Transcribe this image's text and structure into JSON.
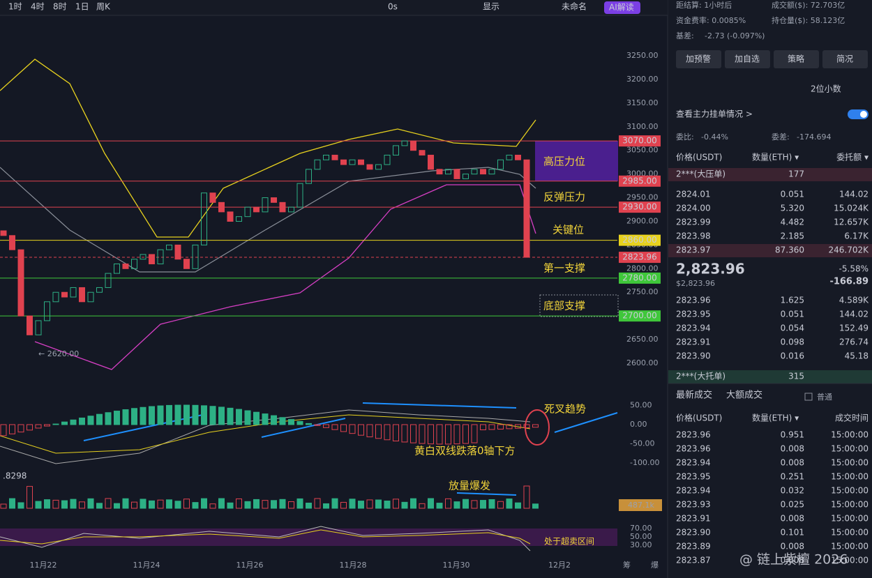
{
  "toolbar": {
    "intervals": [
      "1时",
      "4时",
      "8时",
      "1日",
      "周K"
    ],
    "timer": "0s",
    "display": "显示",
    "layout": "未命名",
    "ai": "AI解读"
  },
  "chart": {
    "ylim": [
      2600,
      3250
    ],
    "price_ticks": [
      {
        "value": 3250,
        "label": "3250.00"
      },
      {
        "value": 3200,
        "label": "3200.00"
      },
      {
        "value": 3150,
        "label": "3150.00"
      },
      {
        "value": 3100,
        "label": "3100.00"
      },
      {
        "value": 3050,
        "label": "3050.00"
      },
      {
        "value": 3000,
        "label": "3000.00"
      },
      {
        "value": 2950,
        "label": "2950.00"
      },
      {
        "value": 2900,
        "label": "2900.00"
      },
      {
        "value": 2850,
        "label": "2850.00"
      },
      {
        "value": 2800,
        "label": "2800.00"
      },
      {
        "value": 2750,
        "label": "2750.00"
      },
      {
        "value": 2700,
        "label": "2700.00"
      },
      {
        "value": 2650,
        "label": "2650.00"
      },
      {
        "value": 2600,
        "label": "2600.00"
      }
    ],
    "levels": [
      {
        "value": 3070,
        "label": "3070.00",
        "color": "#e0424f"
      },
      {
        "value": 2985,
        "label": "2985.00",
        "color": "#e0424f"
      },
      {
        "value": 2930,
        "label": "2930.00",
        "color": "#e0424f"
      },
      {
        "value": 2860,
        "label": "2860.00",
        "color": "#e8d21e"
      },
      {
        "value": 2823.96,
        "label": "2823.96",
        "color": "#e0424f"
      },
      {
        "value": 2780,
        "label": "2780.00",
        "color": "#3fc73a"
      },
      {
        "value": 2700,
        "label": "2700.00",
        "color": "#3fc73a"
      }
    ],
    "low_label": "← 2620.00",
    "annotations": [
      "高压力位",
      "反弹压力",
      "关键位",
      "第一支撑",
      "底部支撑",
      "死叉趋势",
      "黄白双线跌落0轴下方",
      "放量爆发",
      "处于超卖区间"
    ],
    "candles": [
      [
        2880,
        2870
      ],
      [
        2870,
        2840
      ],
      [
        2840,
        2700
      ],
      [
        2700,
        2660
      ],
      [
        2660,
        2690
      ],
      [
        2690,
        2730
      ],
      [
        2730,
        2750
      ],
      [
        2750,
        2740
      ],
      [
        2740,
        2760
      ],
      [
        2760,
        2730
      ],
      [
        2730,
        2750
      ],
      [
        2750,
        2760
      ],
      [
        2760,
        2790
      ],
      [
        2790,
        2810
      ],
      [
        2810,
        2800
      ],
      [
        2800,
        2820
      ],
      [
        2820,
        2830
      ],
      [
        2830,
        2810
      ],
      [
        2810,
        2840
      ],
      [
        2840,
        2850
      ],
      [
        2850,
        2820
      ],
      [
        2820,
        2800
      ],
      [
        2800,
        2850
      ],
      [
        2850,
        2960
      ],
      [
        2960,
        2940
      ],
      [
        2940,
        2920
      ],
      [
        2920,
        2900
      ],
      [
        2900,
        2910
      ],
      [
        2910,
        2930
      ],
      [
        2930,
        2920
      ],
      [
        2920,
        2950
      ],
      [
        2950,
        2940
      ],
      [
        2940,
        2920
      ],
      [
        2920,
        2930
      ],
      [
        2930,
        2980
      ],
      [
        2980,
        3010
      ],
      [
        3010,
        3030
      ],
      [
        3030,
        3040
      ],
      [
        3040,
        3030
      ],
      [
        3030,
        3020
      ],
      [
        3020,
        3030
      ],
      [
        3030,
        3020
      ],
      [
        3020,
        3010
      ],
      [
        3010,
        3020
      ],
      [
        3020,
        3040
      ],
      [
        3040,
        3060
      ],
      [
        3060,
        3070
      ],
      [
        3070,
        3050
      ],
      [
        3050,
        3040
      ],
      [
        3040,
        3010
      ],
      [
        3010,
        3000
      ],
      [
        3000,
        3010
      ],
      [
        3010,
        2990
      ],
      [
        2990,
        3000
      ],
      [
        3000,
        3010
      ],
      [
        3010,
        3000
      ],
      [
        3000,
        3010
      ],
      [
        3010,
        3030
      ],
      [
        3030,
        3040
      ],
      [
        3040,
        3030
      ],
      [
        3030,
        2824
      ]
    ],
    "dates": [
      "11月22",
      "11月24",
      "11月26",
      "11月28",
      "11月30",
      "12月2"
    ],
    "macd_ticks": [
      {
        "value": 50,
        "label": "50.00"
      },
      {
        "value": 0,
        "label": "0.00"
      },
      {
        "value": -50,
        "label": "-50.00"
      },
      {
        "value": -100,
        "label": "-100.00"
      }
    ],
    "indicator_value": ".8298",
    "volume_label": "487.1k",
    "rsi_ticks": [
      {
        "value": 70,
        "label": "70.00"
      },
      {
        "value": 50,
        "label": "50.00"
      },
      {
        "value": 30,
        "label": "30.00"
      }
    ],
    "corner": [
      "筹",
      "爆"
    ]
  },
  "panel": {
    "settle": "距结算: 1小时后",
    "turnover": "成交额($): 72.703亿",
    "funding": "资金费率: 0.0085%",
    "open_interest": "持仓量($): 58.123亿",
    "basis_label": "基差:",
    "basis": "-2.73 (-0.097%)",
    "buttons": [
      "加预警",
      "加自选",
      "策略",
      "简况"
    ],
    "decimals": "2位小数",
    "main_orders": "查看主力挂单情况 >",
    "ratio_label": "委比:",
    "ratio": "-0.44%",
    "diff_label": "委差:",
    "diff": "-174.694",
    "book_header": [
      "价格(USDT)",
      "数量(ETH) ▾",
      "委托额 ▾"
    ],
    "big_ask": {
      "name": "2***(大压单)",
      "qty": "177"
    },
    "asks": [
      [
        "2824.01",
        "0.051",
        "144.02"
      ],
      [
        "2824.00",
        "5.320",
        "15.024K"
      ],
      [
        "2823.99",
        "4.482",
        "12.657K"
      ],
      [
        "2823.98",
        "2.185",
        "6.17K"
      ],
      [
        "2823.97",
        "87.360",
        "246.702K"
      ]
    ],
    "last": "2,823.96",
    "last_usd": "$2,823.96",
    "change_pct": "-5.58%",
    "change": "-166.89",
    "bids": [
      [
        "2823.96",
        "1.625",
        "4.589K"
      ],
      [
        "2823.95",
        "0.051",
        "144.02"
      ],
      [
        "2823.94",
        "0.054",
        "152.49"
      ],
      [
        "2823.91",
        "0.098",
        "276.74"
      ],
      [
        "2823.90",
        "0.016",
        "45.18"
      ]
    ],
    "big_bid": {
      "name": "2***(大托单)",
      "qty": "315"
    },
    "tabs": [
      "最新成交",
      "大额成交",
      "普通"
    ],
    "trade_header": [
      "价格(USDT)",
      "数量(ETH) ▾",
      "成交时间"
    ],
    "trades": [
      [
        "2823.96",
        "0.951",
        "15:00:00",
        "sell"
      ],
      [
        "2823.96",
        "0.008",
        "15:00:00",
        "buy"
      ],
      [
        "2823.94",
        "0.008",
        "15:00:00",
        "sell"
      ],
      [
        "2823.95",
        "0.251",
        "15:00:00",
        "buy"
      ],
      [
        "2823.94",
        "0.032",
        "15:00:00",
        "buy"
      ],
      [
        "2823.93",
        "0.025",
        "15:00:00",
        "buy"
      ],
      [
        "2823.91",
        "0.008",
        "15:00:00",
        "buy"
      ],
      [
        "2823.90",
        "0.101",
        "15:00:00",
        "buy"
      ],
      [
        "2823.89",
        "0.008",
        "15:00:00",
        "sell"
      ],
      [
        "2823.87",
        "0.008",
        "15:00:00",
        "buy"
      ]
    ]
  },
  "watermark": "@ 链上紫檀 2026"
}
